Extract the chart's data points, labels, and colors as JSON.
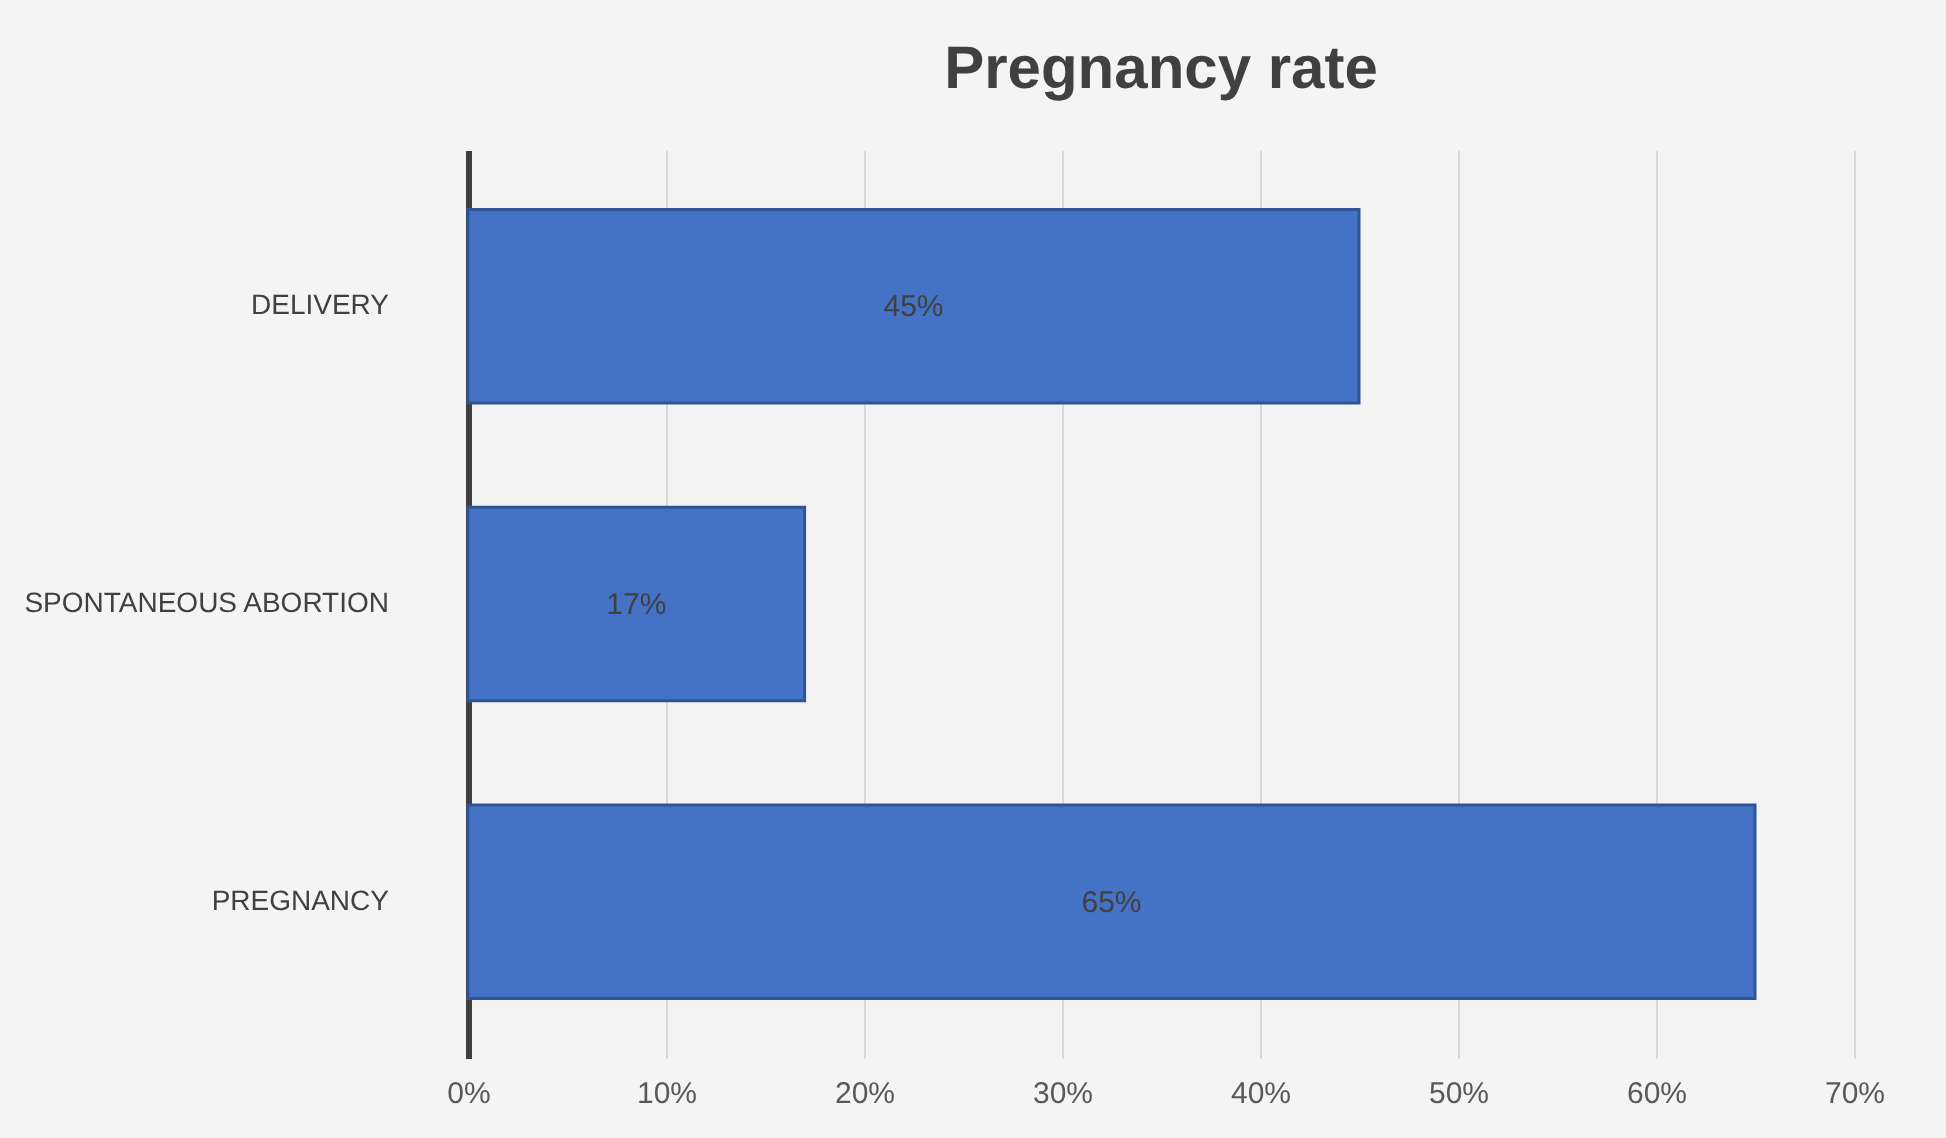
{
  "chart_data": {
    "type": "bar",
    "title": "Pregnancy rate",
    "orientation": "horizontal",
    "categories": [
      "DELIVERY",
      "SPONTANEOUS ABORTION",
      "PREGNANCY"
    ],
    "values": [
      45,
      17,
      65
    ],
    "color": "#4472c4",
    "value_labels": [
      "45%",
      "17%",
      "65%"
    ],
    "xlim": [
      0,
      70
    ],
    "xticks": [
      {
        "value": 0,
        "label": "0%"
      },
      {
        "value": 10,
        "label": "10%"
      },
      {
        "value": 20,
        "label": "20%"
      },
      {
        "value": 30,
        "label": "30%"
      },
      {
        "value": 40,
        "label": "40%"
      },
      {
        "value": 50,
        "label": "50%"
      },
      {
        "value": 60,
        "label": "60%"
      },
      {
        "value": 70,
        "label": "70%"
      }
    ],
    "grid": "x"
  }
}
